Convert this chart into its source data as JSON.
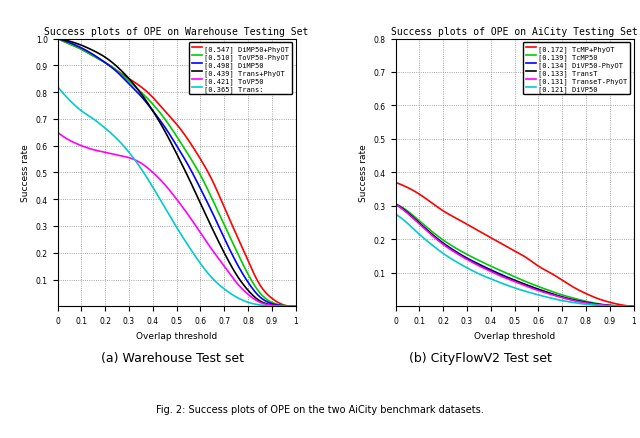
{
  "plot1": {
    "title": "Success plots of OPE on Warehouse Testing Set",
    "xlabel": "Overlap threshold",
    "ylabel": "Success rate",
    "xlim": [
      0,
      1
    ],
    "ylim": [
      0,
      1
    ],
    "xticks": [
      0,
      0.1,
      0.2,
      0.3,
      0.4,
      0.5,
      0.6,
      0.7,
      0.8,
      0.9,
      1.0
    ],
    "yticks": [
      0.1,
      0.2,
      0.3,
      0.4,
      0.5,
      0.6,
      0.7,
      0.8,
      0.9,
      1.0
    ],
    "xtick_labels": [
      "0",
      "0.1",
      "0.2",
      "0.3",
      "0.4",
      "0.5",
      "0.6",
      "0.7",
      "0.8",
      "0.9",
      "1"
    ],
    "ytick_labels": [
      "0.1",
      "0.2",
      "0.3",
      "0.4",
      "0.5",
      "0.6",
      "0.7",
      "0.8",
      "0.9",
      "1.0"
    ],
    "lines": [
      {
        "label": "[0.547] DiMP50+PhyOT",
        "color": "#ff0000",
        "lw": 1.2,
        "auc": 0.547,
        "pts_x": [
          0,
          0.05,
          0.1,
          0.15,
          0.2,
          0.25,
          0.3,
          0.35,
          0.4,
          0.45,
          0.5,
          0.55,
          0.6,
          0.65,
          0.7,
          0.75,
          0.8,
          0.85,
          0.9,
          0.95,
          1.0
        ],
        "pts_y": [
          1.0,
          0.98,
          0.96,
          0.935,
          0.91,
          0.88,
          0.85,
          0.82,
          0.78,
          0.73,
          0.68,
          0.62,
          0.55,
          0.47,
          0.37,
          0.27,
          0.17,
          0.08,
          0.03,
          0.005,
          0.0
        ]
      },
      {
        "label": "[0.510] ToVP50-PhyOT",
        "color": "#00cc00",
        "lw": 1.2,
        "auc": 0.51,
        "pts_x": [
          0,
          0.05,
          0.1,
          0.15,
          0.2,
          0.25,
          0.3,
          0.35,
          0.4,
          0.45,
          0.5,
          0.55,
          0.6,
          0.65,
          0.7,
          0.75,
          0.8,
          0.85,
          0.9,
          0.95,
          1.0
        ],
        "pts_y": [
          1.0,
          0.98,
          0.96,
          0.935,
          0.91,
          0.88,
          0.84,
          0.8,
          0.755,
          0.7,
          0.635,
          0.565,
          0.49,
          0.4,
          0.305,
          0.21,
          0.12,
          0.05,
          0.015,
          0.003,
          0.0
        ]
      },
      {
        "label": "[0.498] DiMP50",
        "color": "#0000ff",
        "lw": 1.2,
        "auc": 0.498,
        "pts_x": [
          0,
          0.05,
          0.1,
          0.15,
          0.2,
          0.25,
          0.3,
          0.35,
          0.4,
          0.45,
          0.5,
          0.55,
          0.6,
          0.65,
          0.7,
          0.75,
          0.8,
          0.85,
          0.9,
          0.95,
          1.0
        ],
        "pts_y": [
          1.0,
          0.985,
          0.965,
          0.94,
          0.91,
          0.875,
          0.83,
          0.785,
          0.73,
          0.67,
          0.6,
          0.525,
          0.44,
          0.35,
          0.255,
          0.165,
          0.09,
          0.035,
          0.01,
          0.002,
          0.0
        ]
      },
      {
        "label": "[0.439] Trans+PhyOT",
        "color": "#000000",
        "lw": 1.2,
        "auc": 0.439,
        "pts_x": [
          0,
          0.05,
          0.1,
          0.15,
          0.2,
          0.25,
          0.3,
          0.35,
          0.4,
          0.45,
          0.5,
          0.55,
          0.6,
          0.65,
          0.7,
          0.75,
          0.8,
          0.85,
          0.9,
          0.95,
          1.0
        ],
        "pts_y": [
          1.0,
          0.99,
          0.975,
          0.955,
          0.93,
          0.895,
          0.85,
          0.795,
          0.73,
          0.655,
          0.57,
          0.48,
          0.385,
          0.29,
          0.2,
          0.12,
          0.06,
          0.02,
          0.005,
          0.001,
          0.0
        ]
      },
      {
        "label": "[0.421] ToVP50",
        "color": "#ff00ff",
        "lw": 1.2,
        "auc": 0.421,
        "pts_x": [
          0,
          0.05,
          0.1,
          0.15,
          0.2,
          0.25,
          0.3,
          0.35,
          0.4,
          0.45,
          0.5,
          0.55,
          0.6,
          0.65,
          0.7,
          0.75,
          0.8,
          0.85,
          0.9,
          0.95,
          1.0
        ],
        "pts_y": [
          0.65,
          0.62,
          0.6,
          0.585,
          0.575,
          0.565,
          0.555,
          0.535,
          0.5,
          0.455,
          0.4,
          0.34,
          0.275,
          0.21,
          0.15,
          0.09,
          0.045,
          0.015,
          0.004,
          0.001,
          0.0
        ]
      },
      {
        "label": "[0.365] Trans:",
        "color": "#00cccc",
        "lw": 1.2,
        "auc": 0.365,
        "pts_x": [
          0,
          0.05,
          0.1,
          0.15,
          0.2,
          0.25,
          0.3,
          0.35,
          0.4,
          0.45,
          0.5,
          0.55,
          0.6,
          0.65,
          0.7,
          0.75,
          0.8,
          0.85,
          0.9,
          0.95,
          1.0
        ],
        "pts_y": [
          0.82,
          0.77,
          0.73,
          0.7,
          0.665,
          0.625,
          0.575,
          0.515,
          0.445,
          0.37,
          0.295,
          0.225,
          0.16,
          0.105,
          0.065,
          0.035,
          0.015,
          0.005,
          0.001,
          0.0,
          0.0
        ]
      }
    ]
  },
  "plot2": {
    "title": "Success plots of OPE on AiCity Testing Set",
    "xlabel": "Overlap threshold",
    "ylabel": "Success rate",
    "xlim": [
      0,
      1
    ],
    "ylim": [
      0,
      0.8
    ],
    "xticks": [
      0,
      0.1,
      0.2,
      0.3,
      0.4,
      0.5,
      0.6,
      0.7,
      0.8,
      0.9,
      1.0
    ],
    "yticks": [
      0.1,
      0.2,
      0.3,
      0.4,
      0.5,
      0.6,
      0.7,
      0.8
    ],
    "xtick_labels": [
      "0",
      "0.1",
      "0.2",
      "0.3",
      "0.4",
      "0.5",
      "0.6",
      "0.7",
      "0.8",
      "0.9",
      "1"
    ],
    "ytick_labels": [
      "0.1",
      "0.2",
      "0.3",
      "0.4",
      "0.5",
      "0.6",
      "0.7",
      "0.8"
    ],
    "lines": [
      {
        "label": "[0.172] TcMP+PhyOT",
        "color": "#ff0000",
        "lw": 1.2,
        "auc": 0.172,
        "pts_x": [
          0,
          0.05,
          0.1,
          0.15,
          0.2,
          0.25,
          0.3,
          0.35,
          0.4,
          0.45,
          0.5,
          0.55,
          0.6,
          0.65,
          0.7,
          0.75,
          0.8,
          0.85,
          0.9,
          0.95,
          1.0
        ],
        "pts_y": [
          0.37,
          0.355,
          0.335,
          0.31,
          0.285,
          0.265,
          0.245,
          0.225,
          0.205,
          0.185,
          0.165,
          0.145,
          0.12,
          0.1,
          0.078,
          0.056,
          0.038,
          0.023,
          0.012,
          0.004,
          0.0
        ]
      },
      {
        "label": "[0.139] TcMP50",
        "color": "#00cc00",
        "lw": 1.2,
        "auc": 0.139,
        "pts_x": [
          0,
          0.05,
          0.1,
          0.15,
          0.2,
          0.25,
          0.3,
          0.35,
          0.4,
          0.45,
          0.5,
          0.55,
          0.6,
          0.65,
          0.7,
          0.75,
          0.8,
          0.85,
          0.9,
          0.95,
          1.0
        ],
        "pts_y": [
          0.305,
          0.285,
          0.255,
          0.225,
          0.198,
          0.175,
          0.155,
          0.137,
          0.12,
          0.104,
          0.088,
          0.073,
          0.059,
          0.046,
          0.034,
          0.024,
          0.015,
          0.008,
          0.003,
          0.001,
          0.0
        ]
      },
      {
        "label": "[0.134] DiVP50-PhyOT",
        "color": "#0000ff",
        "lw": 1.2,
        "auc": 0.134,
        "pts_x": [
          0,
          0.05,
          0.1,
          0.15,
          0.2,
          0.25,
          0.3,
          0.35,
          0.4,
          0.45,
          0.5,
          0.55,
          0.6,
          0.65,
          0.7,
          0.75,
          0.8,
          0.85,
          0.9,
          0.95,
          1.0
        ],
        "pts_y": [
          0.305,
          0.28,
          0.248,
          0.217,
          0.189,
          0.165,
          0.144,
          0.126,
          0.109,
          0.093,
          0.078,
          0.064,
          0.051,
          0.039,
          0.028,
          0.019,
          0.012,
          0.006,
          0.002,
          0.001,
          0.0
        ]
      },
      {
        "label": "[0.133] TransT",
        "color": "#000000",
        "lw": 1.2,
        "auc": 0.133,
        "pts_x": [
          0,
          0.05,
          0.1,
          0.15,
          0.2,
          0.25,
          0.3,
          0.35,
          0.4,
          0.45,
          0.5,
          0.55,
          0.6,
          0.65,
          0.7,
          0.75,
          0.8,
          0.85,
          0.9,
          0.95,
          1.0
        ],
        "pts_y": [
          0.305,
          0.28,
          0.248,
          0.216,
          0.187,
          0.163,
          0.142,
          0.124,
          0.107,
          0.091,
          0.077,
          0.063,
          0.05,
          0.038,
          0.027,
          0.018,
          0.011,
          0.006,
          0.002,
          0.001,
          0.0
        ]
      },
      {
        "label": "[0.131] TranseT-PhyOT",
        "color": "#ff00ff",
        "lw": 1.2,
        "auc": 0.131,
        "pts_x": [
          0,
          0.05,
          0.1,
          0.15,
          0.2,
          0.25,
          0.3,
          0.35,
          0.4,
          0.45,
          0.5,
          0.55,
          0.6,
          0.65,
          0.7,
          0.75,
          0.8,
          0.85,
          0.9,
          0.95,
          1.0
        ],
        "pts_y": [
          0.305,
          0.278,
          0.246,
          0.214,
          0.185,
          0.161,
          0.14,
          0.121,
          0.104,
          0.088,
          0.074,
          0.06,
          0.047,
          0.036,
          0.026,
          0.017,
          0.01,
          0.005,
          0.002,
          0.001,
          0.0
        ]
      },
      {
        "label": "[0.121] DiVP50",
        "color": "#00cccc",
        "lw": 1.2,
        "auc": 0.121,
        "pts_x": [
          0,
          0.05,
          0.1,
          0.15,
          0.2,
          0.25,
          0.3,
          0.35,
          0.4,
          0.45,
          0.5,
          0.55,
          0.6,
          0.65,
          0.7,
          0.75,
          0.8,
          0.85,
          0.9,
          0.95,
          1.0
        ],
        "pts_y": [
          0.275,
          0.248,
          0.215,
          0.185,
          0.158,
          0.135,
          0.115,
          0.097,
          0.082,
          0.068,
          0.055,
          0.044,
          0.034,
          0.025,
          0.017,
          0.011,
          0.006,
          0.003,
          0.001,
          0.0,
          0.0
        ]
      }
    ]
  },
  "subtitle_a": "(a) Warehouse Test set",
  "subtitle_b": "(b) CityFlowV2 Test set",
  "fig_caption": "Fig. 2: Success plots of OPE on the two AiCity benchmark datasets."
}
